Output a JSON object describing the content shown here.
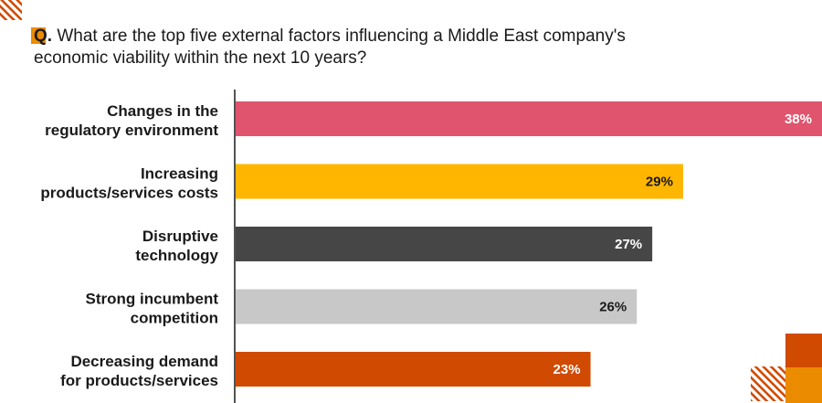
{
  "question": {
    "marker": "Q.",
    "text": " What are the top five external factors influencing a Middle East company's economic viability within the next 10 years?"
  },
  "colors": {
    "accent_orange": "#EB8C00",
    "accent_dark_orange": "#D04A02",
    "stripe": "#D04A02",
    "axis": "#1a1a1a"
  },
  "chart_data": {
    "type": "bar",
    "orientation": "horizontal",
    "categories": [
      [
        "Changes in the",
        "regulatory environment"
      ],
      [
        "Increasing",
        "products/services costs"
      ],
      [
        "Disruptive",
        "technology"
      ],
      [
        "Strong incumbent",
        "competition"
      ],
      [
        "Decreasing demand",
        "for products/services"
      ]
    ],
    "values": [
      38,
      29,
      27,
      26,
      23
    ],
    "value_labels": [
      "38%",
      "29%",
      "27%",
      "26%",
      "23%"
    ],
    "bar_colors": [
      "#E0546D",
      "#FFB600",
      "#464646",
      "#C8C8C8",
      "#D04A02"
    ],
    "label_colors": [
      "#ffffff",
      "#1a1a1a",
      "#ffffff",
      "#1a1a1a",
      "#ffffff"
    ],
    "xlim": [
      0,
      38
    ]
  }
}
